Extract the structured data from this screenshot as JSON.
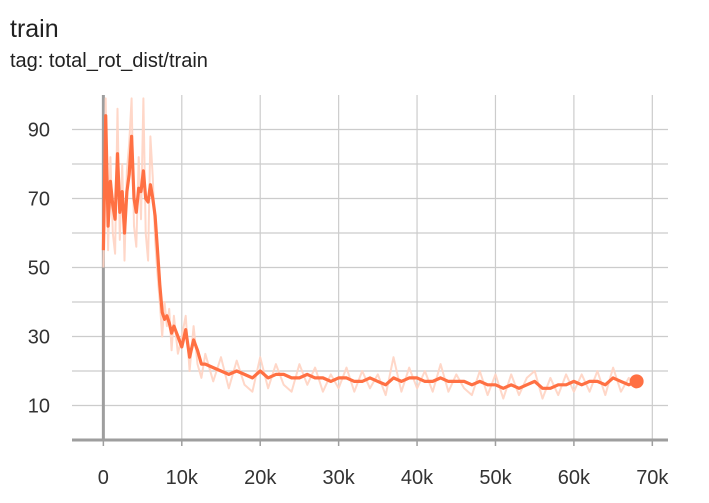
{
  "header": {
    "title": "train",
    "tag": "tag: total_rot_dist/train"
  },
  "colors": {
    "smoothed": "#ff7043",
    "raw": "#ffd3c2",
    "grid": "#cccccc",
    "axis": "#9e9e9e"
  },
  "chart_data": {
    "type": "line",
    "title": "train",
    "subtitle": "tag: total_rot_dist/train",
    "xlabel": "",
    "ylabel": "",
    "xlim": [
      -4000,
      72000
    ],
    "ylim": [
      0,
      100
    ],
    "xticks": [
      0,
      10000,
      20000,
      30000,
      40000,
      50000,
      60000,
      70000
    ],
    "xtick_labels": [
      "0",
      "10k",
      "20k",
      "30k",
      "40k",
      "50k",
      "60k",
      "70k"
    ],
    "yticks": [
      10,
      30,
      50,
      70,
      90
    ],
    "ytick_labels": [
      "10",
      "30",
      "50",
      "70",
      "90"
    ],
    "grid": true,
    "series": [
      {
        "role": "smoothed",
        "x": [
          0,
          300,
          600,
          900,
          1200,
          1500,
          1800,
          2100,
          2400,
          2700,
          3000,
          3300,
          3600,
          3900,
          4200,
          4500,
          4800,
          5100,
          5400,
          5700,
          6000,
          6300,
          6600,
          6900,
          7200,
          7500,
          7800,
          8100,
          8400,
          8700,
          9000,
          9500,
          10000,
          10500,
          11000,
          11500,
          12000,
          12500,
          13000,
          14000,
          15000,
          16000,
          17000,
          18000,
          19000,
          20000,
          21000,
          22000,
          23000,
          24000,
          25000,
          26000,
          27000,
          28000,
          29000,
          30000,
          31000,
          32000,
          33000,
          34000,
          35000,
          36000,
          37000,
          38000,
          39000,
          40000,
          41000,
          42000,
          43000,
          44000,
          45000,
          46000,
          47000,
          48000,
          49000,
          50000,
          51000,
          52000,
          53000,
          54000,
          55000,
          56000,
          57000,
          58000,
          59000,
          60000,
          61000,
          62000,
          63000,
          64000,
          65000,
          66000,
          67000,
          68000
        ],
        "y": [
          55,
          94,
          62,
          75,
          68,
          64,
          83,
          66,
          72,
          60,
          72,
          77,
          88,
          70,
          66,
          73,
          72,
          78,
          70,
          69,
          74,
          70,
          65,
          55,
          45,
          37,
          35,
          36,
          34,
          31,
          33,
          30,
          27,
          32,
          24,
          29,
          26,
          22,
          22,
          21,
          20,
          19,
          20,
          19,
          18,
          20,
          18,
          19,
          19,
          18,
          18,
          19,
          18,
          18,
          17,
          18,
          18,
          17,
          17,
          18,
          17,
          16,
          18,
          17,
          18,
          18,
          17,
          17,
          18,
          17,
          17,
          17,
          16,
          17,
          16,
          16,
          15,
          16,
          15,
          16,
          17,
          15,
          15,
          16,
          16,
          17,
          16,
          17,
          17,
          16,
          18,
          17,
          16,
          17
        ]
      },
      {
        "role": "raw",
        "x": [
          0,
          300,
          600,
          900,
          1200,
          1500,
          1800,
          2100,
          2400,
          2700,
          3000,
          3300,
          3600,
          3900,
          4200,
          4500,
          4800,
          5100,
          5400,
          5700,
          6000,
          6300,
          6600,
          6900,
          7200,
          7500,
          7800,
          8100,
          8400,
          8700,
          9000,
          9500,
          10000,
          10500,
          11000,
          11500,
          12000,
          12500,
          13000,
          14000,
          15000,
          16000,
          17000,
          18000,
          19000,
          20000,
          21000,
          22000,
          23000,
          24000,
          25000,
          26000,
          27000,
          28000,
          29000,
          30000,
          31000,
          32000,
          33000,
          34000,
          35000,
          36000,
          37000,
          38000,
          39000,
          40000,
          41000,
          42000,
          43000,
          44000,
          45000,
          46000,
          47000,
          48000,
          49000,
          50000,
          51000,
          52000,
          53000,
          54000,
          55000,
          56000,
          57000,
          58000,
          59000,
          60000,
          61000,
          62000,
          63000,
          64000,
          65000,
          66000,
          67000,
          68000
        ],
        "y": [
          50,
          99,
          55,
          82,
          60,
          54,
          96,
          58,
          80,
          52,
          78,
          86,
          99,
          62,
          56,
          82,
          64,
          99,
          60,
          52,
          88,
          76,
          58,
          48,
          40,
          30,
          40,
          33,
          38,
          26,
          36,
          25,
          30,
          36,
          20,
          33,
          22,
          18,
          25,
          17,
          24,
          15,
          23,
          16,
          14,
          24,
          15,
          22,
          16,
          14,
          22,
          16,
          21,
          14,
          19,
          15,
          21,
          14,
          20,
          15,
          19,
          13,
          24,
          14,
          21,
          15,
          20,
          14,
          22,
          14,
          19,
          15,
          13,
          20,
          13,
          19,
          12,
          19,
          13,
          18,
          20,
          12,
          18,
          13,
          19,
          14,
          19,
          14,
          20,
          13,
          21,
          14,
          18,
          15
        ]
      }
    ],
    "last_point": {
      "x": 68000,
      "y": 17
    }
  }
}
